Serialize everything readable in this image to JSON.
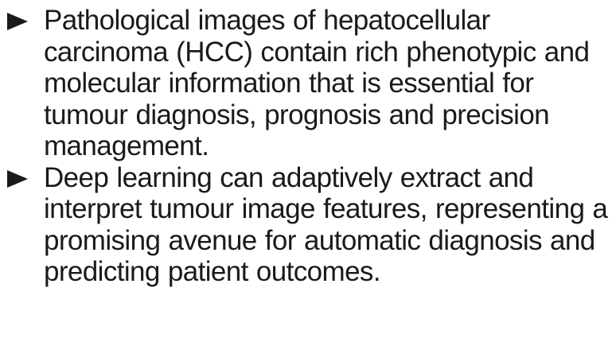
{
  "bullets": [
    {
      "lines": [
        "Pathological images of hepatocellular",
        "carcinoma (HCC) contain rich phenotypic and",
        "molecular information that is essential for",
        "tumour diagnosis, prognosis and precision",
        "management."
      ]
    },
    {
      "lines": [
        "Deep learning can adaptively extract and",
        "interpret tumour image features, representing a",
        "promising avenue for automatic diagnosis and",
        "predicting patient outcomes."
      ]
    }
  ],
  "colors": {
    "text": "#1a1a1a",
    "background": "#ffffff"
  },
  "icons": {
    "bullet": "triangle-bullet-icon"
  }
}
